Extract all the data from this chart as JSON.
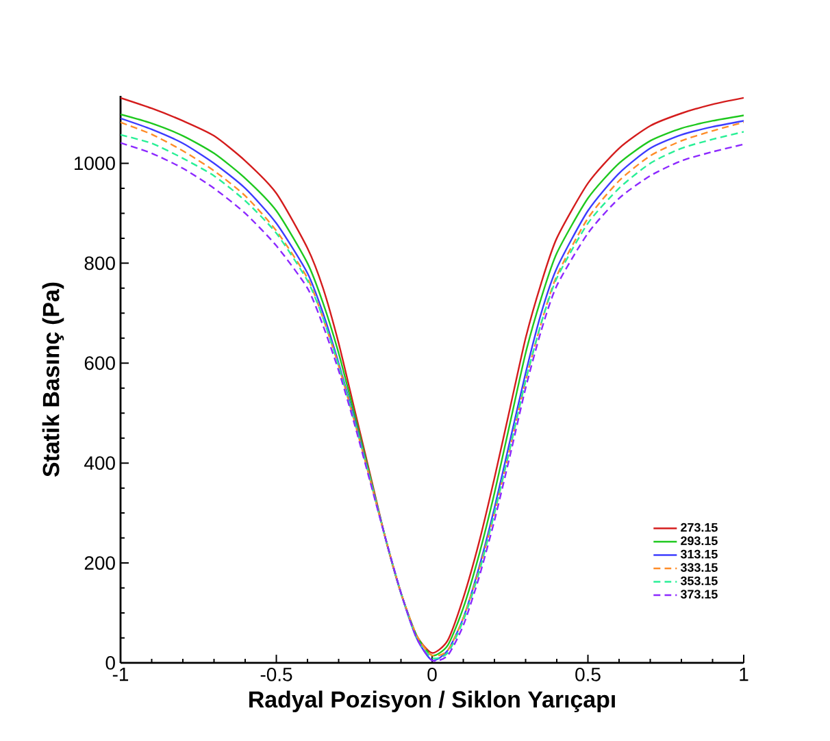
{
  "chart_data": {
    "type": "line",
    "xlabel": "Radyal Pozisyon / Siklon Yarıçapı",
    "ylabel": "Statik Basınç (Pa)",
    "x": [
      -1,
      -0.9,
      -0.8,
      -0.7,
      -0.6,
      -0.5,
      -0.4,
      -0.35,
      -0.3,
      -0.25,
      -0.2,
      -0.15,
      -0.1,
      -0.05,
      0,
      0.05,
      0.1,
      0.15,
      0.2,
      0.25,
      0.3,
      0.35,
      0.4,
      0.5,
      0.6,
      0.7,
      0.8,
      0.9,
      1
    ],
    "series": [
      {
        "name": "273.15",
        "color": "#d41c1c",
        "line_style": "solid",
        "values": [
          1131,
          1110,
          1085,
          1055,
          1005,
          940,
          830,
          750,
          640,
          510,
          380,
          250,
          140,
          55,
          20,
          45,
          130,
          240,
          370,
          510,
          650,
          760,
          850,
          960,
          1030,
          1075,
          1100,
          1118,
          1131
        ]
      },
      {
        "name": "293.15",
        "color": "#1ec81e",
        "line_style": "solid",
        "values": [
          1098,
          1080,
          1055,
          1020,
          970,
          905,
          800,
          720,
          620,
          500,
          375,
          250,
          140,
          55,
          15,
          35,
          110,
          215,
          340,
          480,
          620,
          730,
          820,
          930,
          1000,
          1045,
          1070,
          1085,
          1096
        ]
      },
      {
        "name": "313.15",
        "color": "#3c3cff",
        "line_style": "solid",
        "values": [
          1090,
          1068,
          1040,
          1000,
          950,
          880,
          780,
          700,
          600,
          490,
          370,
          250,
          140,
          50,
          5,
          25,
          90,
          190,
          310,
          445,
          580,
          700,
          790,
          905,
          980,
          1030,
          1057,
          1073,
          1085
        ]
      },
      {
        "name": "333.15",
        "color": "#ff8c28",
        "line_style": "dashed",
        "values": [
          1082,
          1058,
          1025,
          985,
          935,
          865,
          770,
          690,
          595,
          485,
          370,
          250,
          140,
          55,
          15,
          25,
          90,
          185,
          300,
          430,
          565,
          680,
          775,
          890,
          965,
          1015,
          1045,
          1065,
          1082
        ]
      },
      {
        "name": "353.15",
        "color": "#28f096",
        "line_style": "dashed",
        "values": [
          1057,
          1040,
          1010,
          975,
          925,
          860,
          765,
          690,
          595,
          485,
          370,
          250,
          140,
          50,
          10,
          20,
          85,
          180,
          300,
          430,
          565,
          680,
          770,
          880,
          950,
          1000,
          1030,
          1048,
          1063
        ]
      },
      {
        "name": "373.15",
        "color": "#8c28ff",
        "line_style": "dashed",
        "values": [
          1041,
          1020,
          990,
          950,
          900,
          835,
          750,
          675,
          585,
          480,
          365,
          250,
          140,
          50,
          5,
          15,
          75,
          170,
          285,
          415,
          550,
          665,
          755,
          860,
          930,
          975,
          1005,
          1023,
          1038
        ]
      }
    ],
    "xlim": [
      -1,
      1
    ],
    "ylim": [
      0,
      1135
    ],
    "xticks": [
      -1,
      -0.5,
      0,
      0.5,
      1
    ],
    "yticks": [
      0,
      200,
      400,
      600,
      800,
      1000
    ],
    "legend": "bottom right",
    "grid": false
  }
}
